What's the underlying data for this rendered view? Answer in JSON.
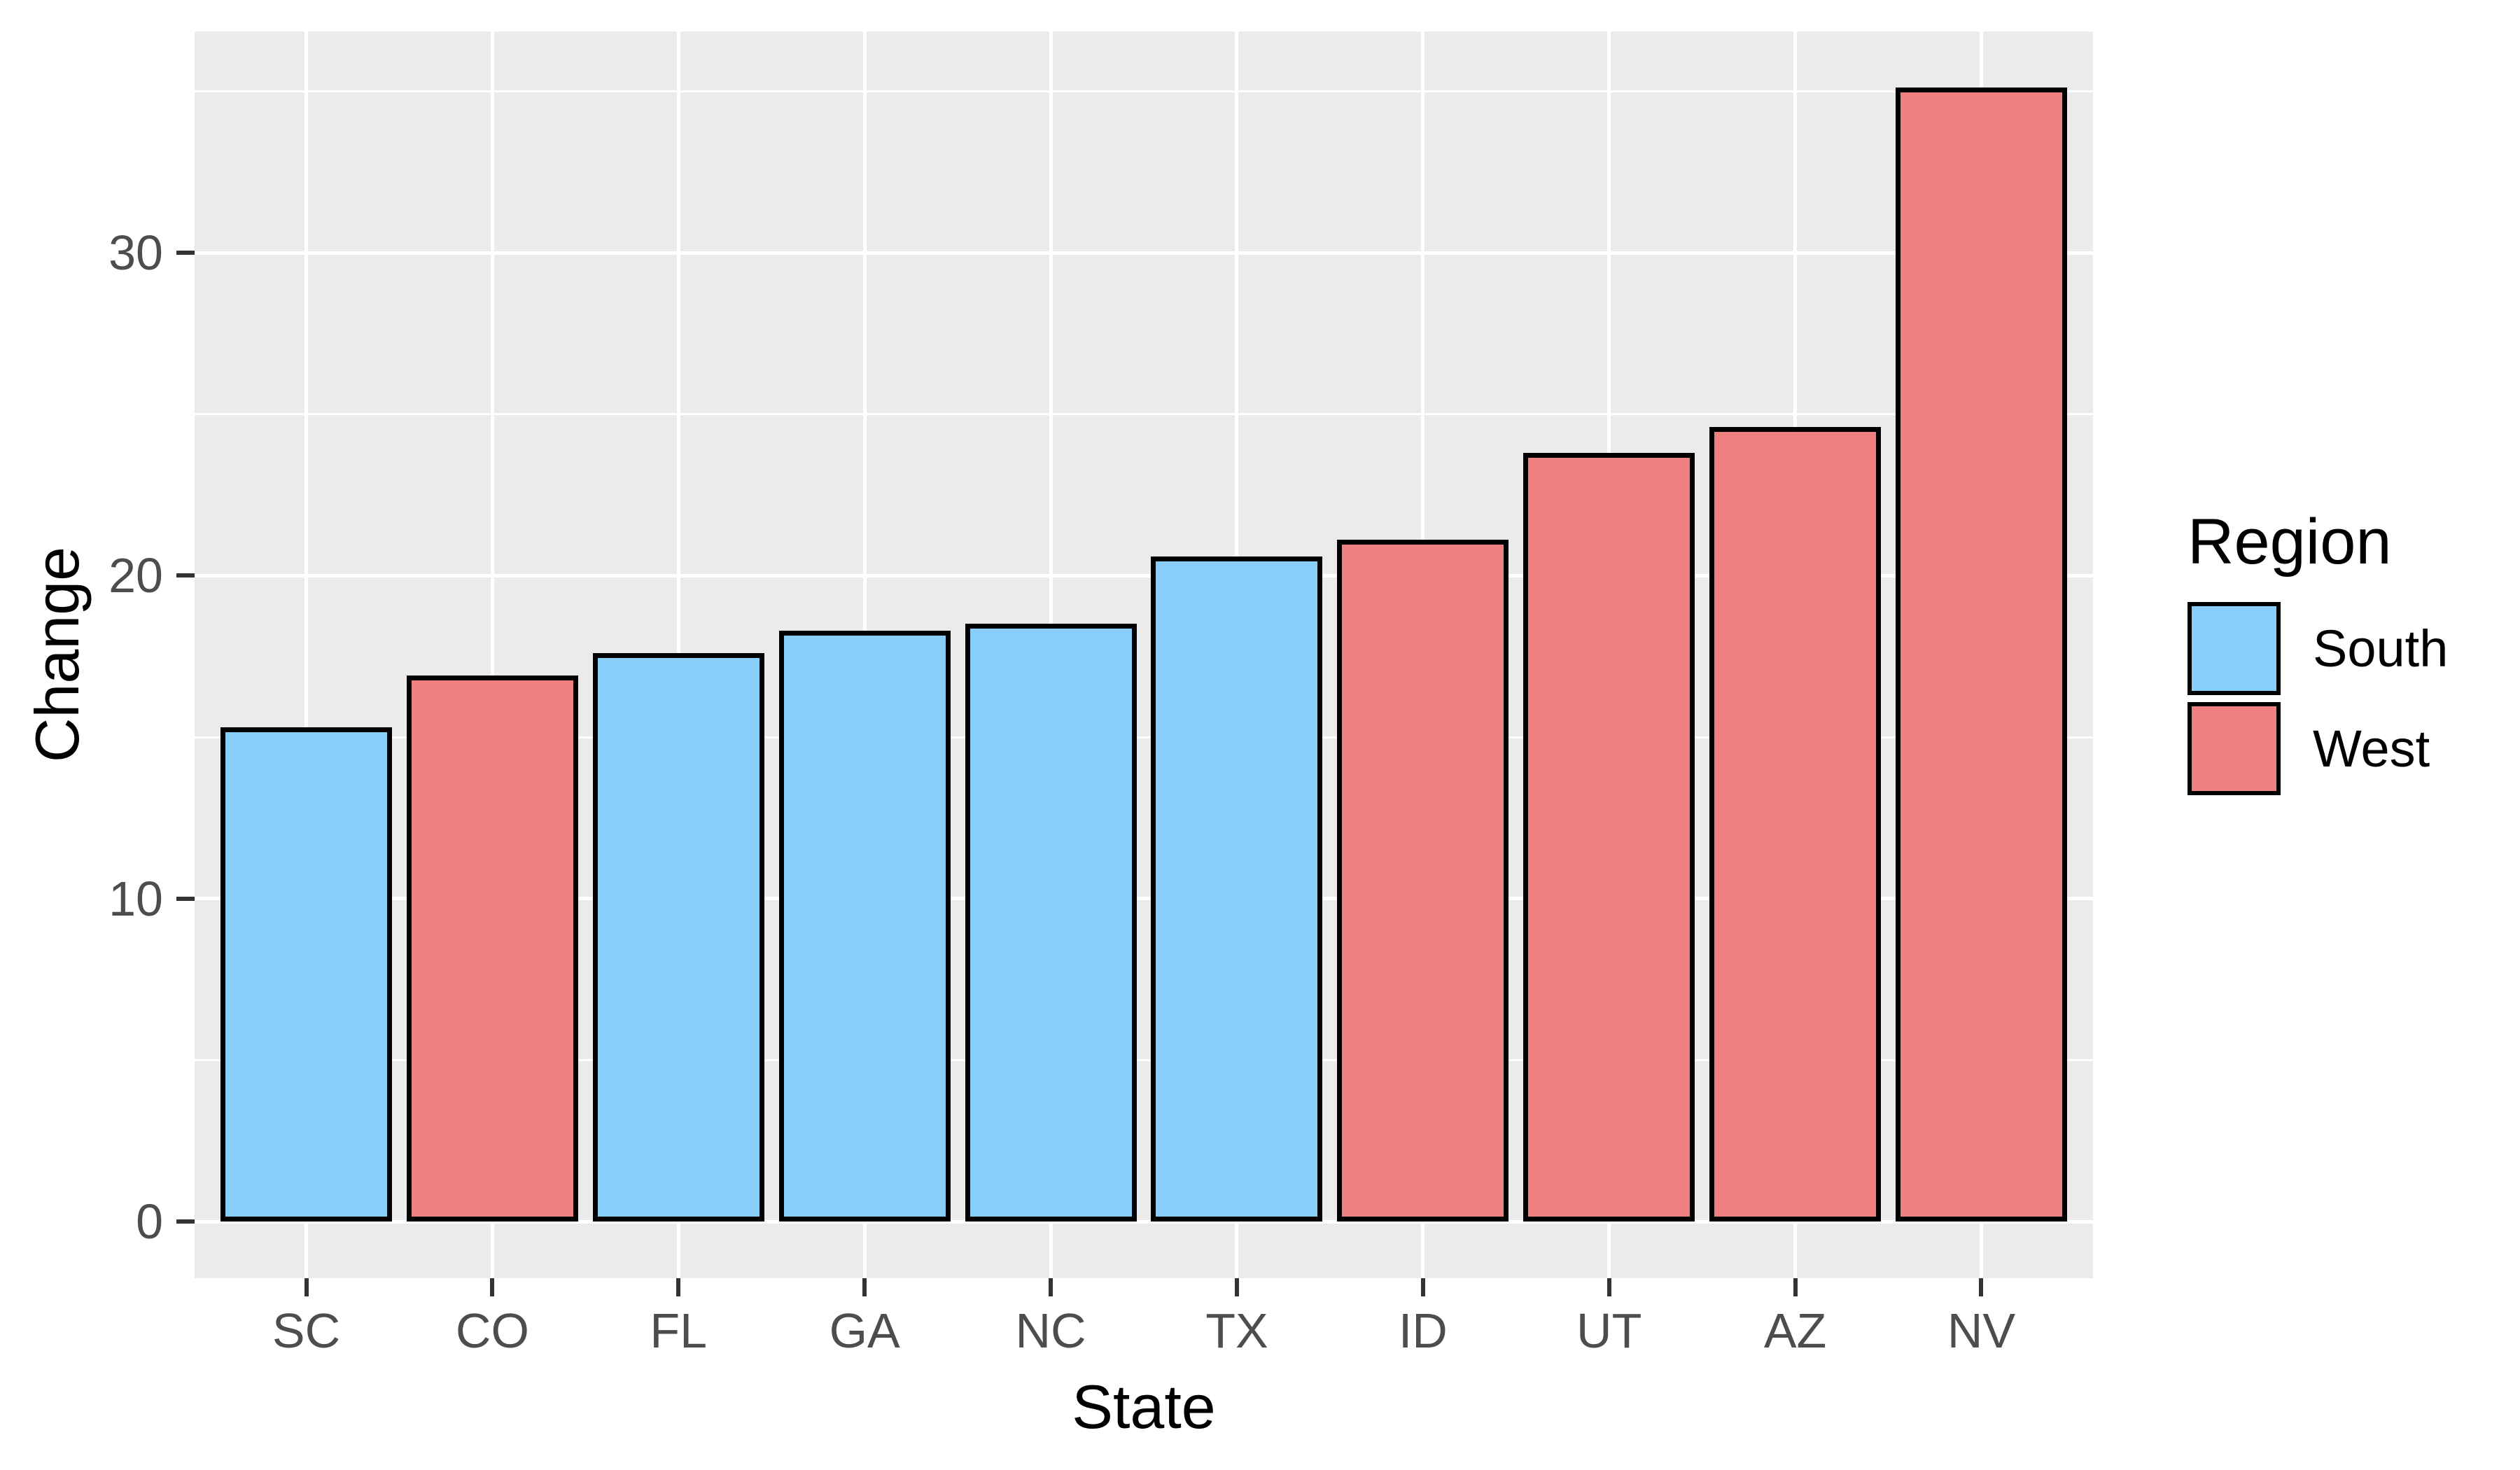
{
  "figure": {
    "background": "#FFFFFF",
    "panel_background": "#EBEBEB",
    "gridline_color": "#FFFFFF",
    "tick_mark_color": "#333333",
    "tick_label_color": "#4D4D4D",
    "axis_title_color": "#000000",
    "bar_border_color": "#000000"
  },
  "chart_data": {
    "type": "bar",
    "title": "",
    "xlabel": "State",
    "ylabel": "Change",
    "categories": [
      "SC",
      "CO",
      "FL",
      "GA",
      "NC",
      "TX",
      "ID",
      "UT",
      "AZ",
      "NV"
    ],
    "values": [
      15.3,
      16.9,
      17.6,
      18.3,
      18.5,
      20.6,
      21.1,
      23.8,
      24.6,
      35.1
    ],
    "series": [
      {
        "name": "South",
        "states": [
          "SC",
          "FL",
          "GA",
          "NC",
          "TX"
        ],
        "color": "#87CEFA"
      },
      {
        "name": "West",
        "states": [
          "CO",
          "ID",
          "UT",
          "AZ",
          "NV"
        ],
        "color": "#F08080"
      }
    ],
    "bar_regions": [
      "South",
      "West",
      "South",
      "South",
      "South",
      "South",
      "West",
      "West",
      "West",
      "West"
    ],
    "region_colors": {
      "South": "#87CEFA",
      "West": "#F08080"
    },
    "y_major_ticks": [
      0,
      10,
      20,
      30
    ],
    "y_minor_gridlines": [
      5,
      15,
      25,
      35
    ],
    "ylim": [
      -1.75,
      36.85
    ],
    "grid": true,
    "bar_width_fraction": 0.92,
    "legend": {
      "title": "Region",
      "position": "right",
      "entries": [
        {
          "label": "South",
          "color": "#87CEFA"
        },
        {
          "label": "West",
          "color": "#F08080"
        }
      ]
    }
  }
}
